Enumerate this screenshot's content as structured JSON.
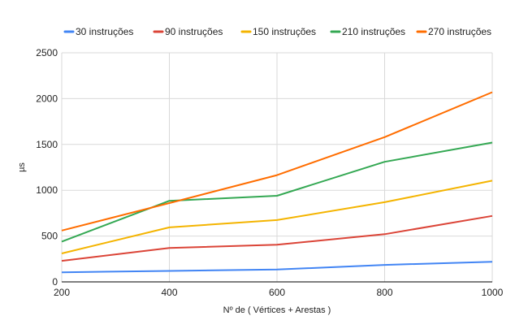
{
  "chart_data": {
    "type": "line",
    "title": "",
    "xlabel": "Nº de ( Vértices + Arestas )",
    "ylabel": "µs",
    "x": [
      200,
      400,
      600,
      800,
      1000
    ],
    "xlim": [
      200,
      1000
    ],
    "ylim": [
      0,
      2500
    ],
    "x_ticks": [
      "200",
      "400",
      "600",
      "800",
      "1000"
    ],
    "y_ticks": [
      "0",
      "500",
      "1000",
      "1500",
      "2000",
      "2500"
    ],
    "grid": true,
    "legend_position": "top",
    "series": [
      {
        "name": "30 instruções",
        "color": "#4285f4",
        "values": [
          105,
          120,
          135,
          185,
          220
        ]
      },
      {
        "name": "90 instruções",
        "color": "#db4437",
        "values": [
          230,
          370,
          405,
          520,
          720
        ]
      },
      {
        "name": "150 instruções",
        "color": "#f4b400",
        "values": [
          310,
          595,
          675,
          870,
          1105
        ]
      },
      {
        "name": "210 instruções",
        "color": "#34a853",
        "values": [
          440,
          885,
          940,
          1310,
          1520
        ]
      },
      {
        "name": "270 instruções",
        "color": "#ff6d00",
        "values": [
          560,
          860,
          1165,
          1580,
          2070
        ]
      }
    ]
  }
}
